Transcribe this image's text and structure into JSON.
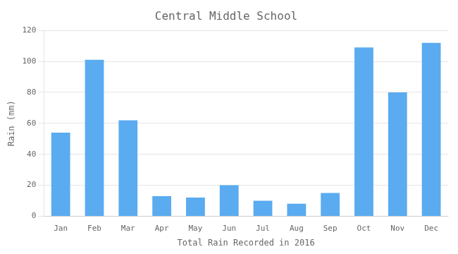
{
  "chart_data": {
    "type": "bar",
    "title": "Central Middle School",
    "xlabel": "Total Rain Recorded in 2016",
    "ylabel": "Rain (mm)",
    "categories": [
      "Jan",
      "Feb",
      "Mar",
      "Apr",
      "May",
      "Jun",
      "Jul",
      "Aug",
      "Sep",
      "Oct",
      "Nov",
      "Dec"
    ],
    "values": [
      54,
      101,
      62,
      13,
      12,
      20,
      10,
      8,
      15,
      109,
      80,
      112
    ],
    "color": "#5aabf0",
    "ylim": [
      0,
      120
    ],
    "yticks": [
      0,
      20,
      40,
      60,
      80,
      100,
      120
    ],
    "grid": true
  }
}
